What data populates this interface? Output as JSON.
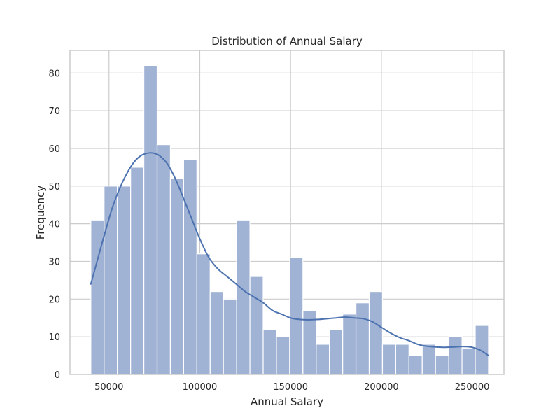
{
  "chart_data": {
    "type": "bar",
    "title": "Distribution of Annual Salary",
    "xlabel": "Annual Salary",
    "ylabel": "Frequency",
    "xlim": [
      28500,
      267500
    ],
    "ylim": [
      0,
      86
    ],
    "x_ticks": [
      50000,
      100000,
      150000,
      200000,
      250000
    ],
    "y_ticks": [
      0,
      10,
      20,
      30,
      40,
      50,
      60,
      70,
      80
    ],
    "grid": true,
    "bin_edges": [
      40000,
      47300,
      54600,
      61900,
      69200,
      76500,
      83800,
      91100,
      98400,
      105700,
      113000,
      120300,
      127600,
      134900,
      142200,
      149500,
      156800,
      164100,
      171400,
      178700,
      186000,
      193300,
      200600,
      207900,
      215200,
      222500,
      229800,
      237100,
      244400,
      251700,
      259000
    ],
    "values": [
      41,
      50,
      50,
      55,
      82,
      61,
      52,
      57,
      32,
      22,
      20,
      41,
      26,
      12,
      10,
      31,
      17,
      8,
      12,
      16,
      19,
      22,
      8,
      8,
      5,
      8,
      5,
      10,
      7,
      13
    ],
    "kde": {
      "x": [
        40000,
        44000,
        48000,
        52000,
        56000,
        60000,
        64000,
        68000,
        72000,
        75000,
        78000,
        82000,
        86000,
        90000,
        95000,
        100000,
        105000,
        110000,
        115000,
        120000,
        125000,
        130000,
        135000,
        140000,
        145000,
        150000,
        155000,
        160000,
        165000,
        170000,
        175000,
        180000,
        185000,
        190000,
        195000,
        200000,
        205000,
        210000,
        215000,
        220000,
        225000,
        230000,
        235000,
        240000,
        245000,
        250000,
        255000,
        259000
      ],
      "y": [
        24,
        31,
        38,
        44.5,
        49.5,
        53.5,
        56.5,
        58.2,
        58.8,
        58.7,
        58,
        56,
        52.5,
        48,
        42,
        36,
        31,
        28,
        26,
        24,
        22,
        20.5,
        19,
        17,
        16,
        15,
        14.6,
        14.5,
        14.6,
        14.8,
        15,
        15.2,
        15,
        14.8,
        14,
        12.5,
        11,
        9.8,
        9,
        8,
        7.5,
        7.3,
        7.2,
        7.3,
        7.4,
        7.2,
        6.3,
        5
      ]
    },
    "colors": {
      "bar_fill": "#a1b3d4",
      "bar_edge": "#ffffff",
      "kde_line": "#4c72b0",
      "grid": "#cccccc",
      "frame": "#cccccc"
    }
  }
}
